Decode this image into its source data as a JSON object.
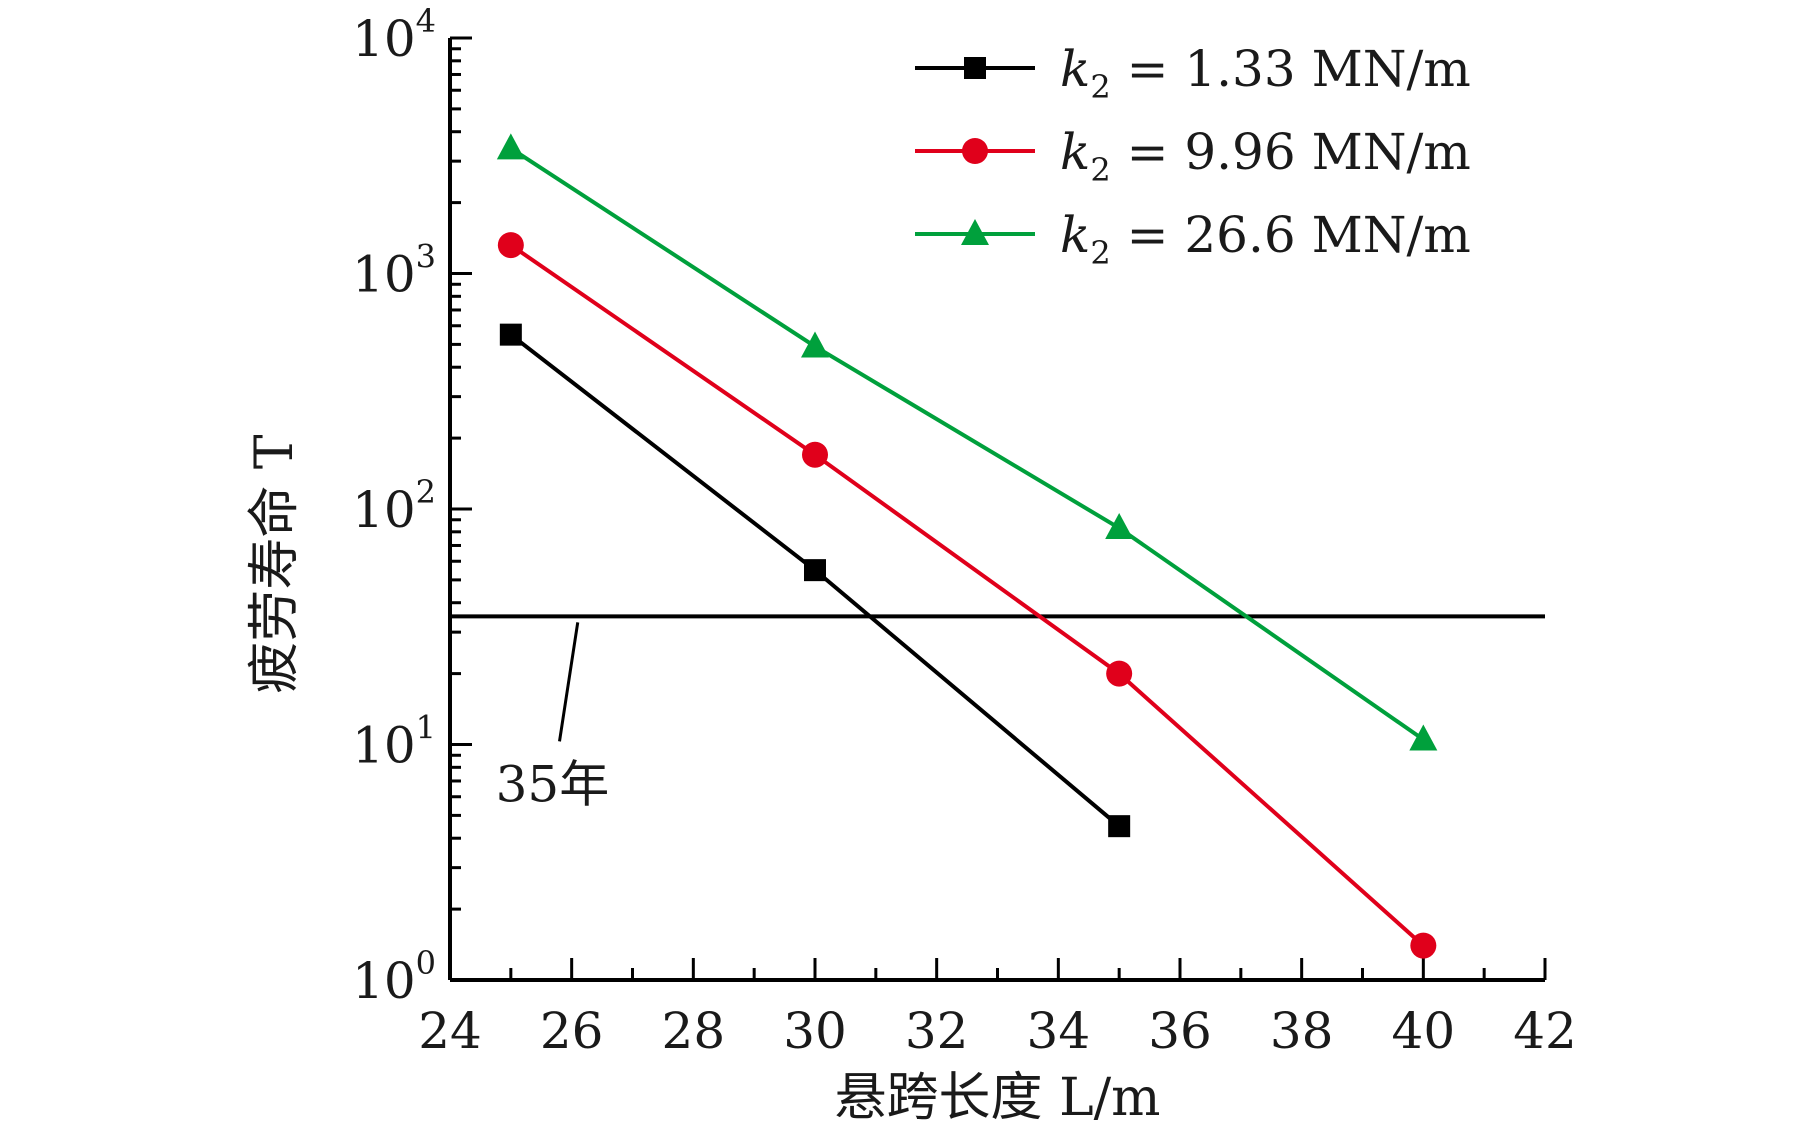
{
  "chart_data": {
    "type": "line",
    "xlabel": "悬跨长度 L/m",
    "ylabel": "疲劳寿命 T",
    "x_ticks": [
      "24",
      "26",
      "28",
      "30",
      "32",
      "34",
      "36",
      "38",
      "40",
      "42"
    ],
    "xlim": [
      24,
      42
    ],
    "y_scale": "log",
    "ylim": [
      1,
      10000
    ],
    "y_ticks": [
      {
        "base": "10",
        "exp": "0"
      },
      {
        "base": "10",
        "exp": "1"
      },
      {
        "base": "10",
        "exp": "2"
      },
      {
        "base": "10",
        "exp": "3"
      },
      {
        "base": "10",
        "exp": "4"
      }
    ],
    "grid": false,
    "legend_position": "top-right",
    "series": [
      {
        "name": "k2 = 1.33 MN/m",
        "legend_var": "k",
        "legend_sub": "2",
        "legend_eq": "= 1.33 MN/m",
        "color": "#000000",
        "marker": "square",
        "x": [
          25,
          30,
          35
        ],
        "y": [
          550,
          55,
          4.5
        ]
      },
      {
        "name": "k2 = 9.96 MN/m",
        "legend_var": "k",
        "legend_sub": "2",
        "legend_eq": "= 9.96 MN/m",
        "color": "#e0001b",
        "marker": "circle",
        "x": [
          25,
          30,
          35,
          40
        ],
        "y": [
          1320,
          170,
          20,
          1.4
        ]
      },
      {
        "name": "k2 = 26.6 MN/m",
        "legend_var": "k",
        "legend_sub": "2",
        "legend_eq": "= 26.6 MN/m",
        "color": "#00a03c",
        "marker": "triangle",
        "x": [
          25,
          30,
          35,
          40
        ],
        "y": [
          3400,
          490,
          83,
          10.5
        ]
      }
    ],
    "reference_line": {
      "y": 35,
      "label": "35年",
      "color": "#000000"
    }
  }
}
